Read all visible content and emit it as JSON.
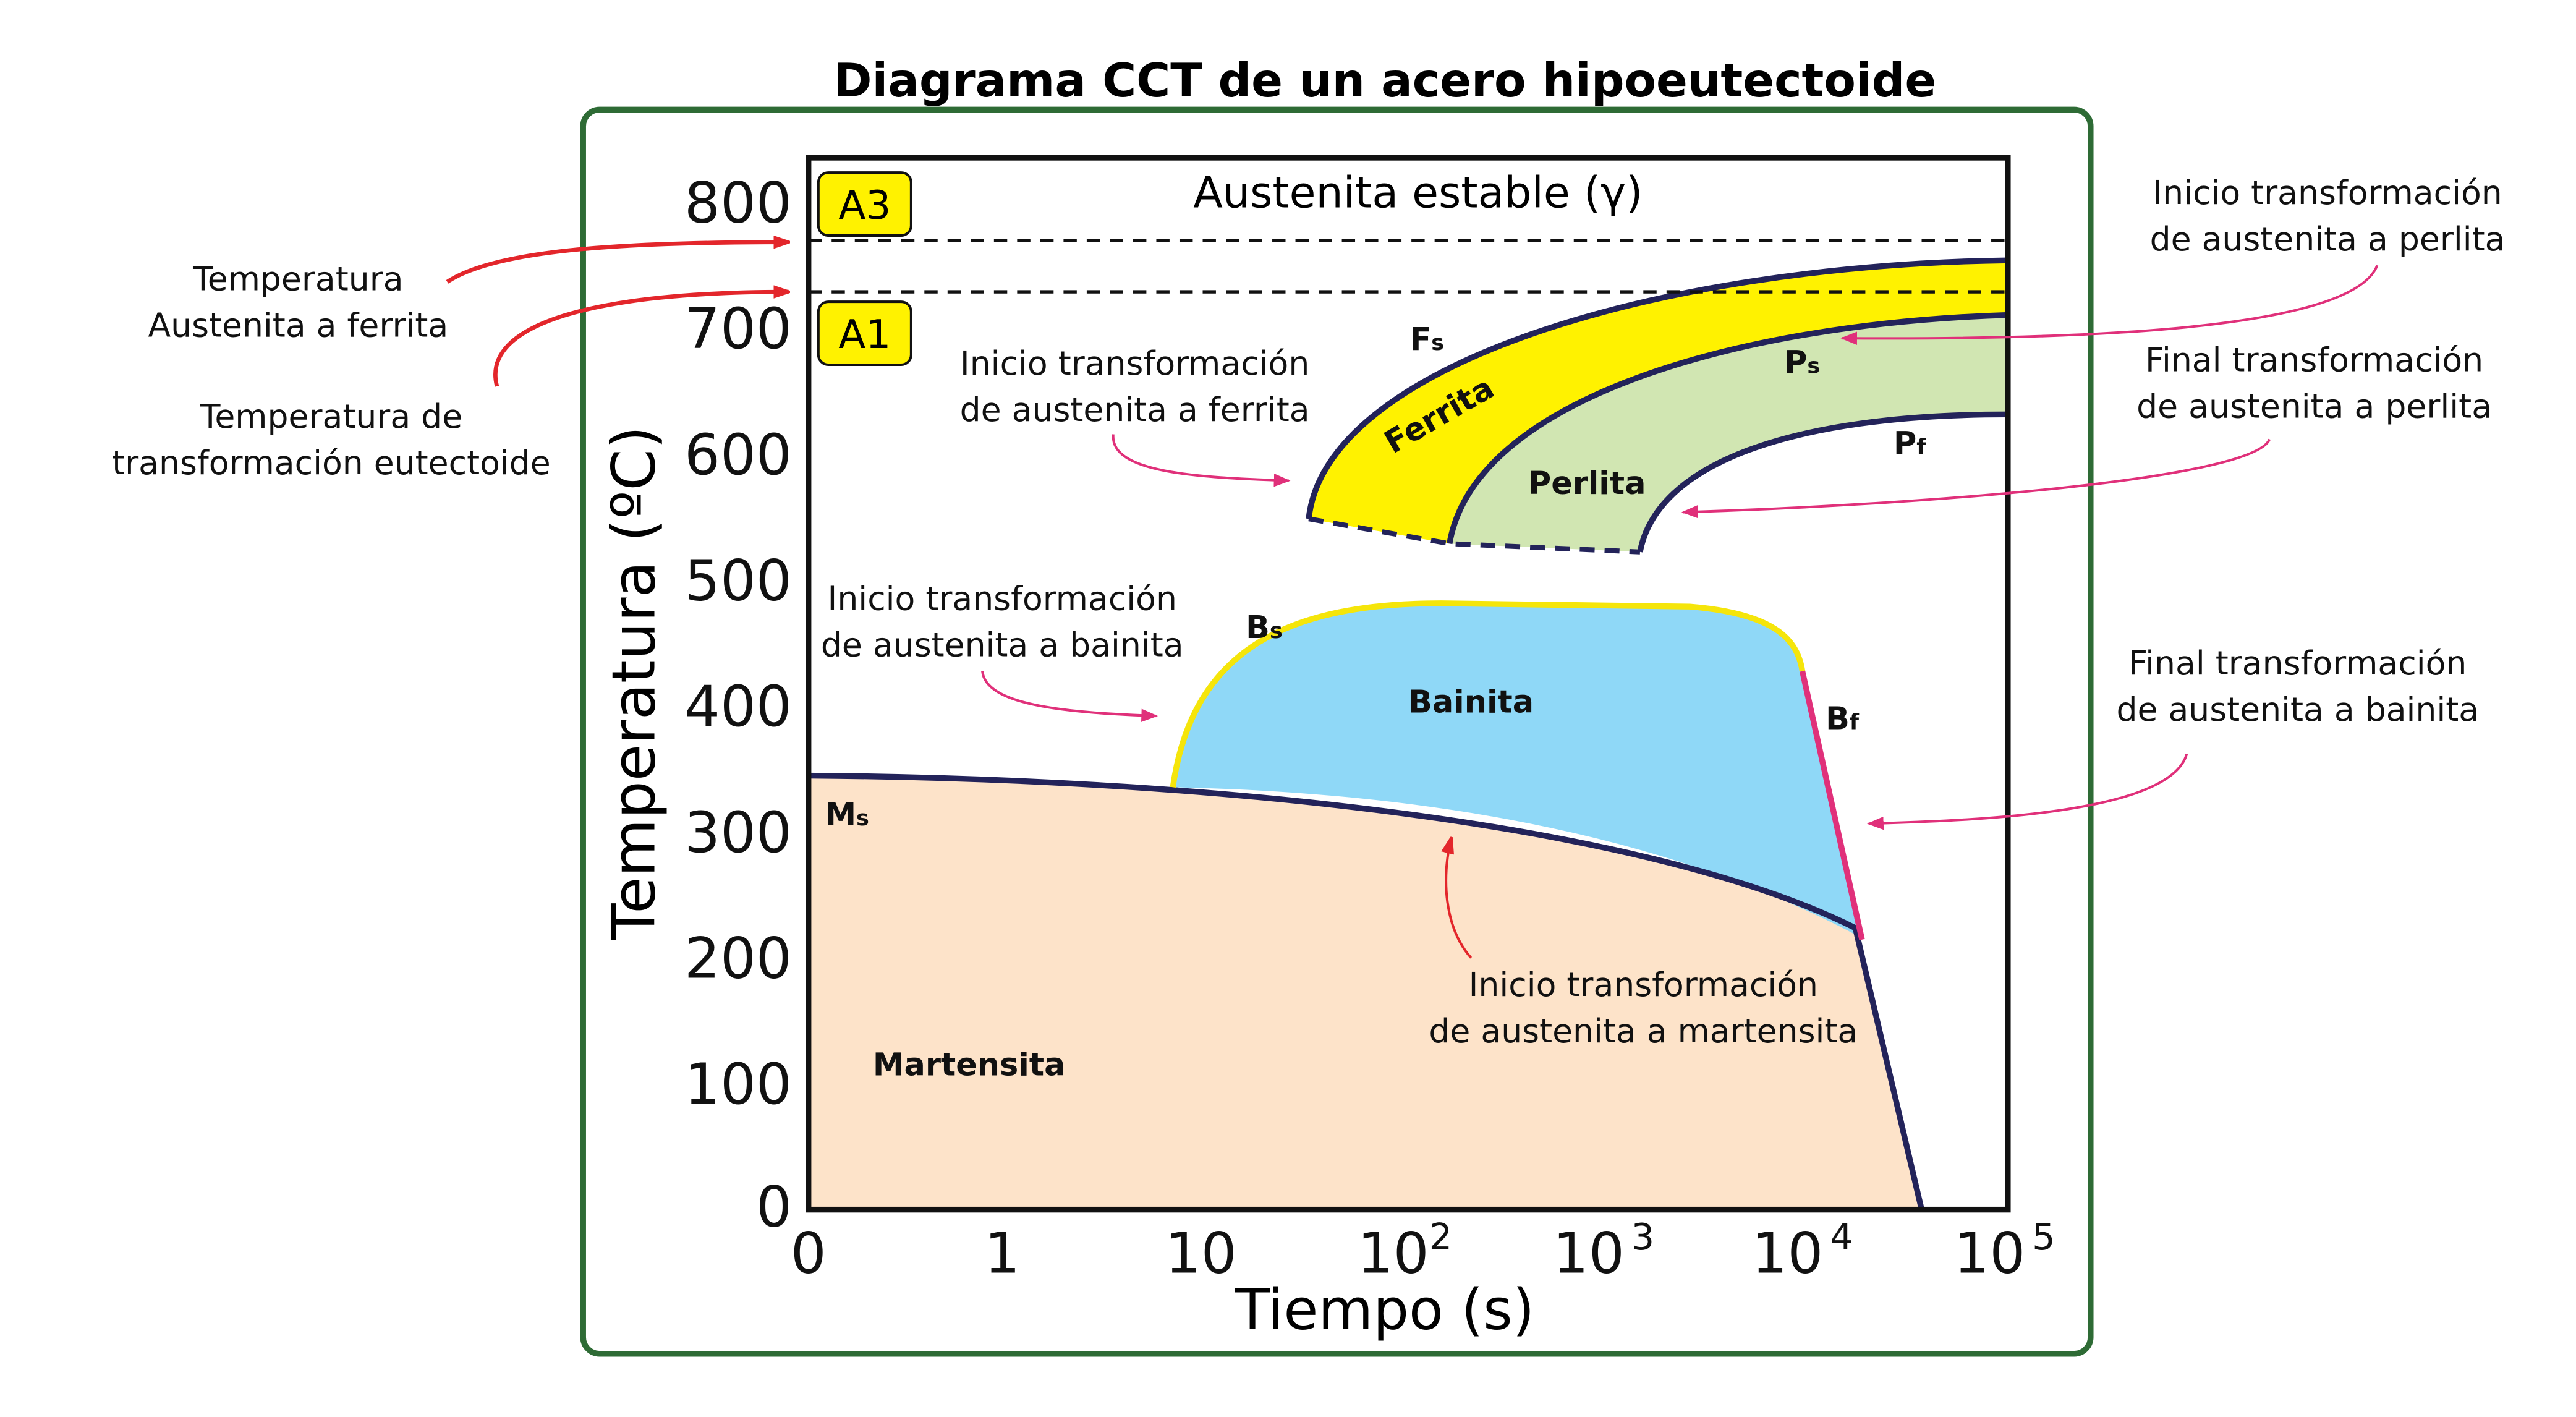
{
  "title": "Diagrama CCT de un acero hipoeutectoide",
  "y_axis": {
    "label": "Temperatura (ºC)",
    "ticks": [
      "0",
      "100",
      "200",
      "300",
      "400",
      "500",
      "600",
      "700",
      "800"
    ]
  },
  "x_axis": {
    "label": "Tiempo (s)",
    "ticks": [
      {
        "text": "0"
      },
      {
        "text": "1"
      },
      {
        "text": "10"
      },
      {
        "text": "10",
        "sup": "2"
      },
      {
        "text": "10",
        "sup": "3"
      },
      {
        "text": "10",
        "sup": "4"
      },
      {
        "text": "10",
        "sup": "5"
      }
    ]
  },
  "markers": {
    "a3": "A3",
    "a1": "A1",
    "stable": "Austenita estable (γ)"
  },
  "curves": {
    "fs": {
      "main": "F",
      "sub": "s"
    },
    "ps": {
      "main": "P",
      "sub": "s"
    },
    "pf": {
      "main": "P",
      "sub": "f"
    },
    "bs": {
      "main": "B",
      "sub": "s"
    },
    "bf": {
      "main": "B",
      "sub": "f"
    },
    "ms": {
      "main": "M",
      "sub": "s"
    }
  },
  "regions": {
    "ferrita": "Ferrita",
    "perlita": "Perlita",
    "bainita": "Bainita",
    "martensita": "Martensita"
  },
  "annotations": {
    "a3_temp": [
      "Temperatura",
      "Austenita a ferrita"
    ],
    "a1_temp": [
      "Temperatura de",
      "transformación eutectoide"
    ],
    "perlite_start": [
      "Inicio transformación",
      "de austenita a perlita"
    ],
    "perlite_end": [
      "Final transformación",
      "de austenita a perlita"
    ],
    "ferrite_start": [
      "Inicio transformación",
      "de austenita a ferrita"
    ],
    "bainite_start": [
      "Inicio transformación",
      "de austenita a bainita"
    ],
    "bainite_end": [
      "Final transformación",
      "de austenita a bainita"
    ],
    "martensite_start": [
      "Inicio transformación",
      "de austenita a martensita"
    ]
  }
}
